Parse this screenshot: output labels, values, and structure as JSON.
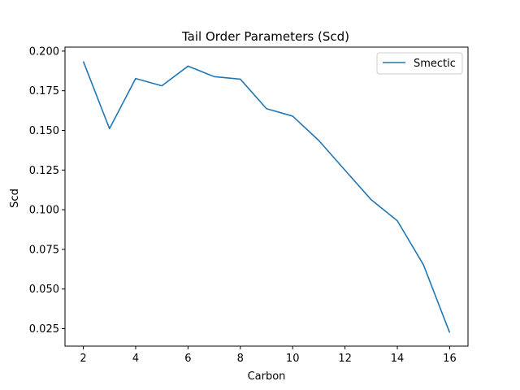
{
  "chart_data": {
    "type": "line",
    "title": "Tail Order Parameters (Scd)",
    "xlabel": "Carbon",
    "ylabel": "Scd",
    "xlim": [
      1.3,
      16.7
    ],
    "ylim": [
      0.014,
      0.2025
    ],
    "x_ticks": [
      2,
      4,
      6,
      8,
      10,
      12,
      14,
      16
    ],
    "x_tick_labels": [
      "2",
      "4",
      "6",
      "8",
      "10",
      "12",
      "14",
      "16"
    ],
    "y_ticks": [
      0.025,
      0.05,
      0.075,
      0.1,
      0.125,
      0.15,
      0.175,
      0.2
    ],
    "y_tick_labels": [
      "0.025",
      "0.050",
      "0.075",
      "0.100",
      "0.125",
      "0.150",
      "0.175",
      "0.200"
    ],
    "grid": false,
    "legend_position": "upper right",
    "series": [
      {
        "name": "Smectic",
        "color": "#1f77b4",
        "x": [
          2,
          3,
          4,
          5,
          6,
          7,
          8,
          9,
          10,
          11,
          12,
          13,
          14,
          15,
          16
        ],
        "y": [
          0.1935,
          0.1511,
          0.1827,
          0.1781,
          0.1905,
          0.1839,
          0.1823,
          0.1637,
          0.159,
          0.1436,
          0.1249,
          0.1063,
          0.093,
          0.0652,
          0.0225
        ]
      }
    ]
  }
}
